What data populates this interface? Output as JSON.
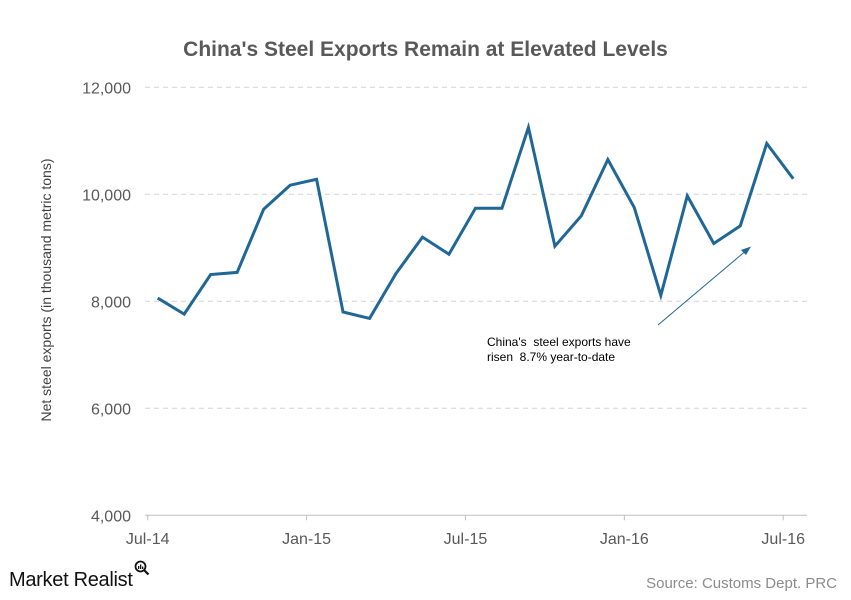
{
  "chart_data": {
    "type": "line",
    "title": "China's Steel Exports Remain at Elevated Levels",
    "ylabel": "Net steel exports (in thousand metric tons)",
    "xlabel": "",
    "ylim": [
      4000,
      12000
    ],
    "yticks": [
      "4,000",
      "6,000",
      "8,000",
      "10,000",
      "12,000"
    ],
    "ytick_values": [
      4000,
      6000,
      8000,
      10000,
      12000
    ],
    "xticks": [
      "Jul-14",
      "Jan-15",
      "Jul-15",
      "Jan-16",
      "Jul-16"
    ],
    "xtick_index": [
      0,
      6,
      12,
      18,
      24
    ],
    "grid": "horizontal dashed",
    "x": [
      "Jul-14",
      "Aug-14",
      "Sep-14",
      "Oct-14",
      "Nov-14",
      "Dec-14",
      "Jan-15",
      "Feb-15",
      "Mar-15",
      "Apr-15",
      "May-15",
      "Jun-15",
      "Jul-15",
      "Aug-15",
      "Sep-15",
      "Oct-15",
      "Nov-15",
      "Dec-15",
      "Jan-16",
      "Feb-16",
      "Mar-16",
      "Apr-16",
      "May-16",
      "Jun-16",
      "Jul-16"
    ],
    "values": [
      8060,
      7760,
      8500,
      8540,
      9720,
      10170,
      10280,
      7800,
      7680,
      8520,
      9200,
      8880,
      9740,
      9740,
      11250,
      9030,
      9600,
      10650,
      9750,
      8110,
      9970,
      9080,
      9410,
      10950,
      10290
    ],
    "line_color": "#1f6797",
    "annotation": {
      "line1": "China's  steel exports have",
      "line2": "risen  8.7% year-to-date"
    }
  },
  "footer": {
    "logo": "Market Realist",
    "source": "Source:  Customs Dept. PRC"
  }
}
